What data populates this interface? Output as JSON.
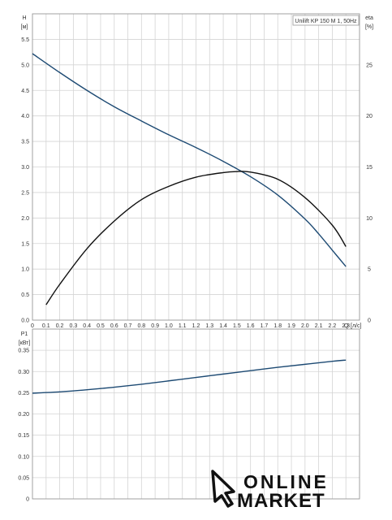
{
  "chart_data": [
    {
      "type": "line",
      "title": "Unilift KP 150 M 1, 50Hz",
      "ylabel_left": "H",
      "ylabel_left_unit": "[м]",
      "ylabel_right": "eta",
      "ylabel_right_unit": "[%]",
      "xlabel": "Q",
      "xlabel_unit": "[л/с]",
      "xlim": [
        0,
        2.4
      ],
      "ylim_left": [
        0,
        6.0
      ],
      "ylim_right": [
        0,
        30
      ],
      "x_ticks": [
        "0",
        "0.1",
        "0.2",
        "0.3",
        "0.4",
        "0.5",
        "0.6",
        "0.7",
        "0.8",
        "0.9",
        "1.0",
        "1.1",
        "1.2",
        "1.3",
        "1.4",
        "1.5",
        "1.6",
        "1.7",
        "1.8",
        "1.9",
        "2.0",
        "2.1",
        "2.2",
        "2.3"
      ],
      "y_ticks_left": [
        "0.0",
        "0.5",
        "1.0",
        "1.5",
        "2.0",
        "2.5",
        "3.0",
        "3.5",
        "4.0",
        "4.5",
        "5.0",
        "5.5"
      ],
      "y_ticks_right": [
        "0",
        "5",
        "10",
        "15",
        "20",
        "25"
      ],
      "grid": true,
      "series": [
        {
          "axis": "left",
          "color": "#1d4a73",
          "x": [
            0,
            0.2,
            0.4,
            0.6,
            0.8,
            1.0,
            1.2,
            1.4,
            1.6,
            1.8,
            2.0,
            2.1,
            2.2,
            2.3
          ],
          "y": [
            5.22,
            4.85,
            4.5,
            4.18,
            3.9,
            3.63,
            3.38,
            3.11,
            2.81,
            2.45,
            1.98,
            1.69,
            1.37,
            1.05
          ]
        },
        {
          "axis": "right",
          "color": "#111111",
          "x": [
            0.1,
            0.2,
            0.4,
            0.6,
            0.8,
            1.0,
            1.2,
            1.4,
            1.5,
            1.6,
            1.8,
            2.0,
            2.2,
            2.3
          ],
          "y": [
            1.5,
            3.5,
            7.0,
            9.7,
            11.8,
            13.1,
            14.0,
            14.45,
            14.55,
            14.5,
            13.8,
            12.0,
            9.3,
            7.2
          ]
        }
      ]
    },
    {
      "type": "line",
      "ylabel": "P1",
      "ylabel_unit": "[кВт]",
      "xlim": [
        0,
        2.4
      ],
      "ylim": [
        0,
        0.4
      ],
      "y_ticks": [
        "0",
        "0.05",
        "0.10",
        "0.15",
        "0.20",
        "0.25",
        "0.30",
        "0.35"
      ],
      "grid": true,
      "series": [
        {
          "color": "#1d4a73",
          "x": [
            0,
            0.2,
            0.4,
            0.6,
            0.8,
            1.0,
            1.2,
            1.4,
            1.6,
            1.8,
            2.0,
            2.2,
            2.3
          ],
          "y": [
            0.249,
            0.252,
            0.257,
            0.263,
            0.27,
            0.278,
            0.286,
            0.294,
            0.302,
            0.31,
            0.317,
            0.324,
            0.327
          ]
        }
      ]
    }
  ],
  "logo": {
    "line1": "ONLINE",
    "line2": "MARKET",
    "icon": "cursor-arrow-icon"
  }
}
